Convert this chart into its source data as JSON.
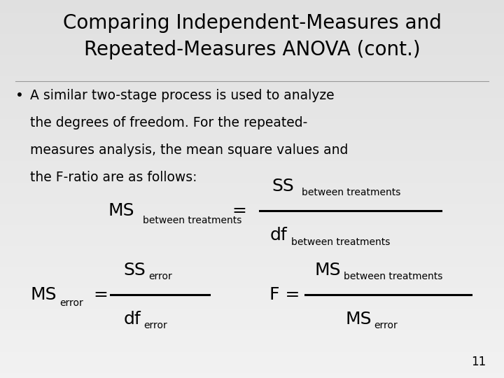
{
  "title_line1": "Comparing Independent-Measures and",
  "title_line2": "Repeated-Measures ANOVA (cont.)",
  "title_fontsize": 20,
  "bullet_fontsize": 13.5,
  "formula_fontsize_large": 18,
  "formula_fontsize_small": 10,
  "background_color": "#e8e8e8",
  "text_color": "#000000",
  "page_number": "11",
  "bullet_text_line1": "A similar two-stage process is used to analyze",
  "bullet_text_line2": "the degrees of freedom. For the repeated-",
  "bullet_text_line3": "measures analysis, the mean square values and",
  "bullet_text_line4": "the F-ratio are as follows:"
}
